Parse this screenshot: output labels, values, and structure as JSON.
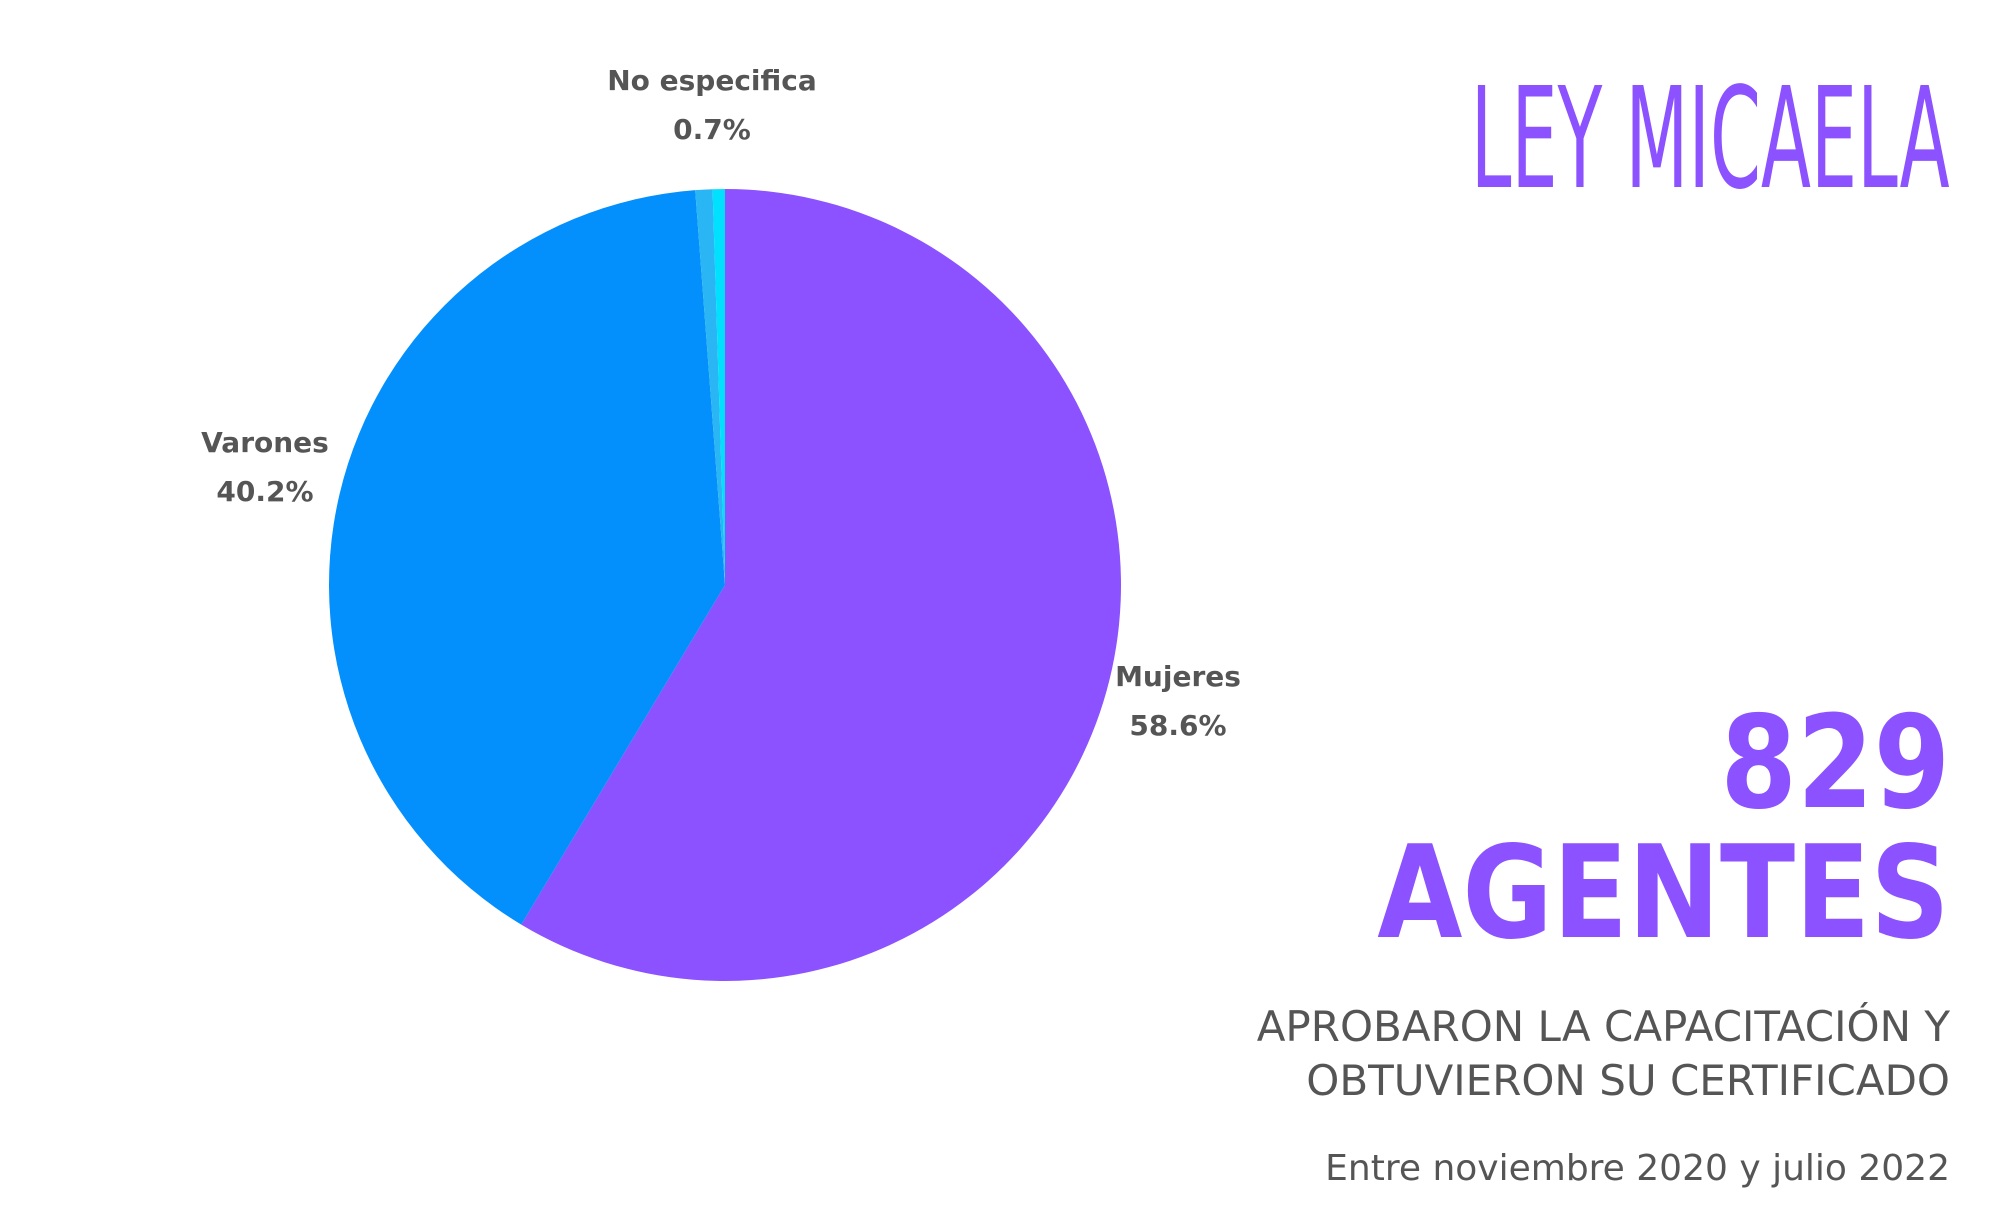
{
  "header": {
    "title": "LEY MICAELA"
  },
  "stats": {
    "count": "829",
    "unit": "AGENTES",
    "description_line1": "APROBARON LA CAPACITACIÓN Y",
    "description_line2": "OBTUVIERON SU CERTIFICADO",
    "period": "Entre noviembre 2020 y julio 2022"
  },
  "colors": {
    "accent": "#8c52ff",
    "text": "#555555"
  },
  "chart_data": {
    "type": "pie",
    "start_angle_deg": 0,
    "direction": "clockwise",
    "slices": [
      {
        "label": "Mujeres",
        "display": "58.6%",
        "value": 58.6,
        "color": "#8c52ff"
      },
      {
        "label": "Varones",
        "display": "40.2%",
        "value": 40.2,
        "color": "#038ffc"
      },
      {
        "label": "No especifica",
        "display": "0.7%",
        "value": 0.7,
        "color": "#2ab6f5"
      },
      {
        "label": "",
        "display": "",
        "value": 0.5,
        "color": "#00e0ff"
      }
    ]
  }
}
